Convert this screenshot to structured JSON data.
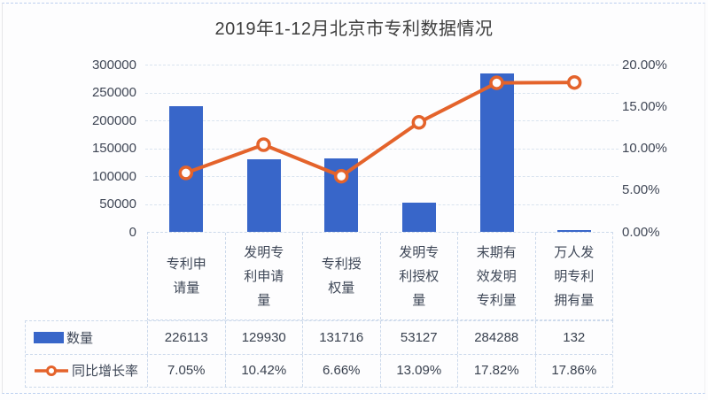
{
  "title": "2019年1-12月北京市专利数据情况",
  "chart_data": {
    "type": "combo-bar-line",
    "title": "2019年1-12月北京市专利数据情况",
    "categories": [
      "专利申请量",
      "发明专利申请量",
      "专利授权量",
      "发明专利授权量",
      "末期有效发明专利量",
      "万人发明专利拥有量"
    ],
    "category_display_lines": [
      [
        "专利申",
        "请量"
      ],
      [
        "发明专",
        "利申请",
        "量"
      ],
      [
        "专利授",
        "权量"
      ],
      [
        "发明专",
        "利授权",
        "量"
      ],
      [
        "末期有",
        "效发明",
        "专利量"
      ],
      [
        "万人发",
        "明专利",
        "拥有量"
      ]
    ],
    "series": [
      {
        "name": "数量",
        "type": "bar",
        "y_axis": "left",
        "color": "#3866C9",
        "values": [
          226113,
          129930,
          131716,
          53127,
          284288,
          132
        ]
      },
      {
        "name": "同比增长率",
        "type": "line",
        "y_axis": "right",
        "color": "#E4632B",
        "values_percent": [
          7.05,
          10.42,
          6.66,
          13.09,
          17.82,
          17.86
        ],
        "value_labels": [
          "7.05%",
          "10.42%",
          "6.66%",
          "13.09%",
          "17.82%",
          "17.86%"
        ]
      }
    ],
    "left_axis": {
      "min": 0,
      "max": 300000,
      "tick_step": 50000,
      "tick_labels": [
        "300000",
        "250000",
        "200000",
        "150000",
        "100000",
        "50000",
        "0"
      ]
    },
    "right_axis": {
      "min": 0,
      "max": 20,
      "tick_labels": [
        "20.00%",
        "15.00%",
        "10.00%",
        "5.00%",
        "0.00%"
      ]
    },
    "grid": "horizontal dashed lines at left-axis ticks",
    "legend_position": "bottom-left of data table"
  },
  "table": {
    "rows": [
      {
        "label": "数量",
        "swatch": "bar-swatch",
        "values": [
          "226113",
          "129930",
          "131716",
          "53127",
          "284288",
          "132"
        ]
      },
      {
        "label": "同比增长率",
        "swatch": "line-swatch",
        "values": [
          "7.05%",
          "10.42%",
          "6.66%",
          "13.09%",
          "17.82%",
          "17.86%"
        ]
      }
    ]
  },
  "colors": {
    "bar": "#3866C9",
    "line": "#E4632B",
    "marker_fill": "#fdfdfe",
    "grid": "#d9e4ef",
    "cell_border": "#ccd9eb",
    "axis_text": "#3f4655",
    "title_text": "#3e3e3e",
    "frame_dash": "#bcd0f0"
  }
}
